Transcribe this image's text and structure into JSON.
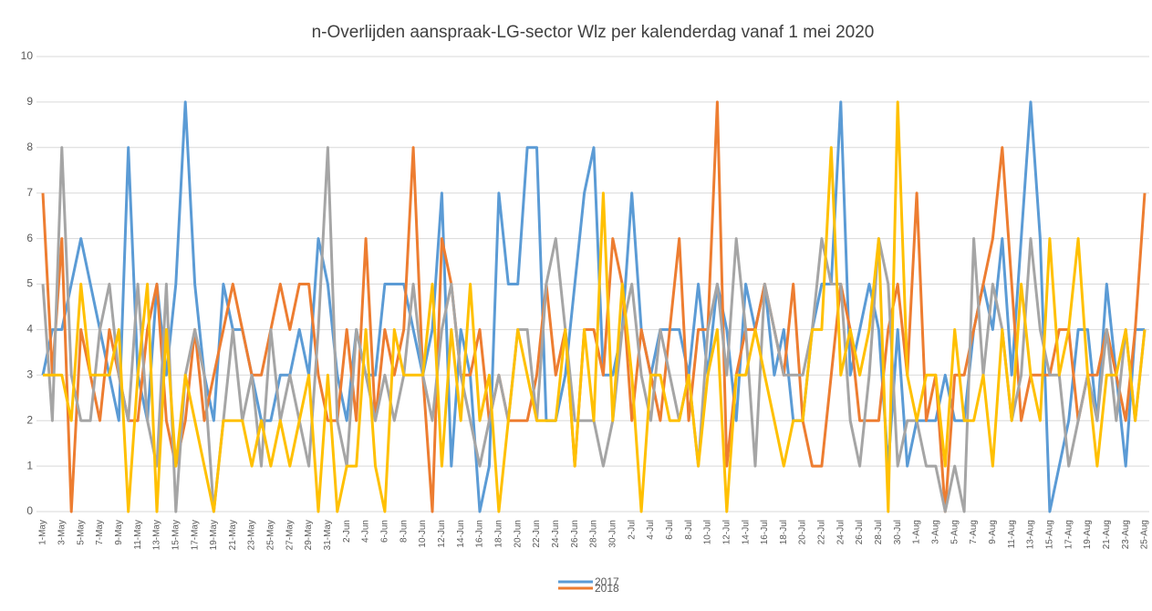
{
  "chart_data": {
    "type": "line",
    "title": "n-Overlijden  aanspraak-LG-sector  Wlz  per  kalenderdag  vanaf  1  mei  2020",
    "categories": [
      "1-May",
      null,
      "3-May",
      null,
      "5-May",
      null,
      "7-May",
      null,
      "9-May",
      null,
      "11-May",
      null,
      "13-May",
      null,
      "15-May",
      null,
      "17-May",
      null,
      "19-May",
      null,
      "21-May",
      null,
      "23-May",
      null,
      "25-May",
      null,
      "27-May",
      null,
      "29-May",
      null,
      "31-May",
      null,
      "2-Jun",
      null,
      "4-Jun",
      null,
      "6-Jun",
      null,
      "8-Jun",
      null,
      "10-Jun",
      null,
      "12-Jun",
      null,
      "14-Jun",
      null,
      "16-Jun",
      null,
      "18-Jun",
      null,
      "20-Jun",
      null,
      "22-Jun",
      null,
      "24-Jun",
      null,
      "26-Jun",
      null,
      "28-Jun",
      null,
      "30-Jun",
      null,
      "2-Jul",
      null,
      "4-Jul",
      null,
      "6-Jul",
      null,
      "8-Jul",
      null,
      "10-Jul",
      null,
      "12-Jul",
      null,
      "14-Jul",
      null,
      "16-Jul",
      null,
      "18-Jul",
      null,
      "20-Jul",
      null,
      "22-Jul",
      null,
      "24-Jul",
      null,
      "26-Jul",
      null,
      "28-Jul",
      null,
      "30-Jul",
      null,
      "1-Aug",
      null,
      "3-Aug",
      null,
      "5-Aug",
      null,
      "7-Aug",
      null,
      "9-Aug",
      null,
      "11-Aug",
      null,
      "13-Aug",
      null,
      "15-Aug",
      null,
      "17-Aug",
      null,
      "19-Aug",
      null,
      "21-Aug",
      null,
      "23-Aug",
      null,
      "25-Aug"
    ],
    "series": [
      {
        "name": "2017",
        "color": "#5b9bd5",
        "values": [
          3,
          4,
          4,
          5,
          6,
          5,
          4,
          3,
          2,
          8,
          3,
          2,
          5,
          3,
          5,
          9,
          5,
          3,
          2,
          5,
          4,
          4,
          3,
          2,
          2,
          3,
          3,
          4,
          3,
          6,
          5,
          3,
          2,
          4,
          3,
          3,
          5,
          5,
          5,
          4,
          3,
          4,
          7,
          1,
          4,
          3,
          0,
          1,
          7,
          5,
          5,
          8,
          8,
          2,
          2,
          3,
          5,
          7,
          8,
          3,
          3,
          4,
          7,
          4,
          3,
          4,
          4,
          4,
          3,
          5,
          3,
          5,
          4,
          2,
          5,
          4,
          5,
          3,
          4,
          2,
          2,
          4,
          5,
          5,
          9,
          3,
          4,
          5,
          4,
          1,
          4,
          1,
          2,
          2,
          2,
          3,
          2,
          2,
          4,
          5,
          4,
          6,
          3,
          6,
          9,
          6,
          0,
          1,
          2,
          4,
          4,
          2,
          5,
          3,
          1,
          4,
          4
        ]
      },
      {
        "name": "2018",
        "color": "#ed7d31",
        "values": [
          7,
          3,
          6,
          0,
          4,
          3,
          2,
          4,
          3,
          2,
          2,
          4,
          5,
          2,
          1,
          2,
          4,
          2,
          3,
          4,
          5,
          4,
          3,
          3,
          4,
          5,
          4,
          5,
          5,
          3,
          2,
          2,
          4,
          2,
          6,
          2,
          4,
          3,
          4,
          8,
          3,
          0,
          6,
          5,
          3,
          3,
          4,
          2,
          3,
          2,
          2,
          2,
          3,
          5,
          3,
          4,
          1,
          4,
          4,
          3,
          6,
          5,
          2,
          4,
          3,
          2,
          4,
          6,
          2,
          4,
          4,
          9,
          1,
          3,
          4,
          4,
          5,
          4,
          3,
          5,
          2,
          1,
          1,
          3,
          5,
          4,
          2,
          2,
          2,
          4,
          5,
          3,
          7,
          2,
          3,
          0,
          3,
          3,
          4,
          5,
          6,
          8,
          5,
          2,
          3,
          3,
          3,
          4,
          4,
          2,
          3,
          3,
          4,
          3,
          2,
          4,
          7
        ]
      },
      {
        "color": "#a5a5a5",
        "values": [
          5,
          2,
          8,
          3,
          2,
          2,
          4,
          5,
          3,
          2,
          5,
          2,
          1,
          5,
          0,
          3,
          4,
          3,
          0,
          2,
          4,
          2,
          3,
          1,
          4,
          2,
          3,
          2,
          1,
          4,
          8,
          2,
          1,
          4,
          3,
          2,
          3,
          2,
          3,
          5,
          3,
          2,
          4,
          5,
          3,
          2,
          1,
          2,
          3,
          2,
          4,
          4,
          2,
          5,
          6,
          4,
          2,
          2,
          2,
          1,
          2,
          4,
          5,
          3,
          2,
          4,
          3,
          2,
          3,
          1,
          4,
          5,
          3,
          6,
          4,
          1,
          5,
          4,
          3,
          3,
          3,
          4,
          6,
          5,
          5,
          2,
          1,
          3,
          6,
          5,
          1,
          2,
          2,
          1,
          1,
          0,
          1,
          0,
          6,
          3,
          5,
          4,
          2,
          3,
          6,
          4,
          3,
          3,
          1,
          2,
          3,
          2,
          4,
          2,
          4,
          2,
          4
        ]
      },
      {
        "color": "#ffc000",
        "values": [
          3,
          3,
          3,
          2,
          5,
          3,
          3,
          3,
          4,
          0,
          3,
          5,
          0,
          4,
          1,
          3,
          2,
          1,
          0,
          2,
          2,
          2,
          1,
          2,
          1,
          2,
          1,
          2,
          3,
          0,
          3,
          0,
          1,
          1,
          4,
          1,
          0,
          4,
          3,
          3,
          3,
          5,
          1,
          4,
          2,
          5,
          2,
          3,
          0,
          2,
          4,
          3,
          2,
          2,
          2,
          4,
          1,
          4,
          2,
          7,
          2,
          5,
          3,
          0,
          3,
          3,
          2,
          2,
          3,
          1,
          3,
          4,
          0,
          3,
          3,
          4,
          3,
          2,
          1,
          2,
          2,
          4,
          4,
          8,
          3,
          4,
          3,
          4,
          6,
          0,
          9,
          3,
          2,
          3,
          3,
          1,
          4,
          2,
          2,
          3,
          1,
          4,
          2,
          5,
          3,
          2,
          6,
          3,
          4,
          6,
          3,
          1,
          3,
          3,
          4,
          2,
          4
        ]
      }
    ],
    "ylim": [
      0,
      10
    ],
    "yticks": [
      0,
      1,
      2,
      3,
      4,
      5,
      6,
      7,
      8,
      9,
      10
    ],
    "grid": true
  }
}
